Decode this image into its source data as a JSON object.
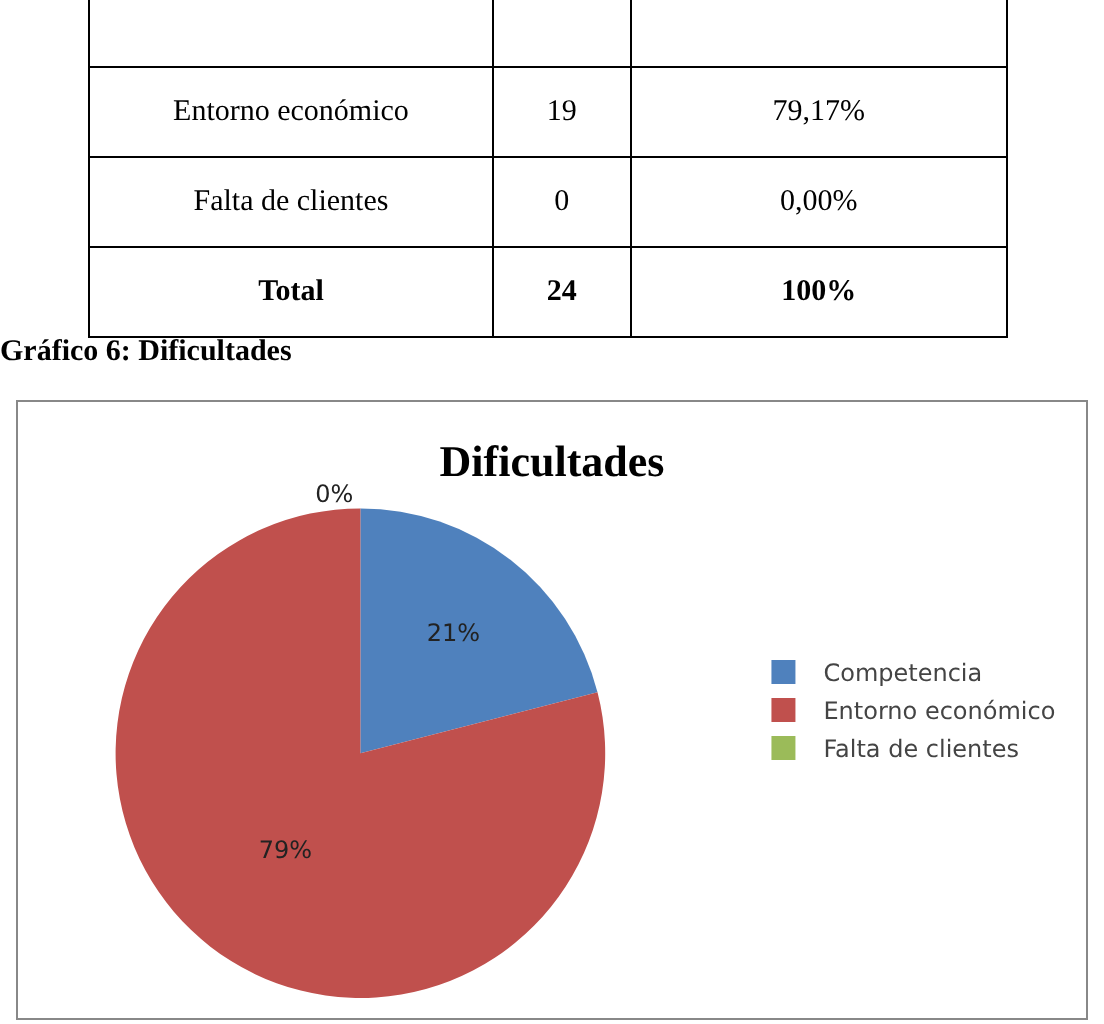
{
  "chart_data": {
    "type": "pie",
    "title": "Dificultades",
    "categories": [
      "Competencia",
      "Entorno económico",
      "Falta de clientes"
    ],
    "values": [
      21,
      79,
      0
    ],
    "value_labels": [
      "21%",
      "79%",
      "0%"
    ],
    "colors": [
      "#4f81bd",
      "#c0504d",
      "#9bbb59"
    ],
    "legend": "right",
    "annotations": [
      "Entorno económico",
      "19",
      "79,17%",
      "Falta de clientes",
      "0",
      "0,00%",
      "Total",
      "24",
      "100%",
      "Gráfico 6: Dificultades"
    ]
  }
}
